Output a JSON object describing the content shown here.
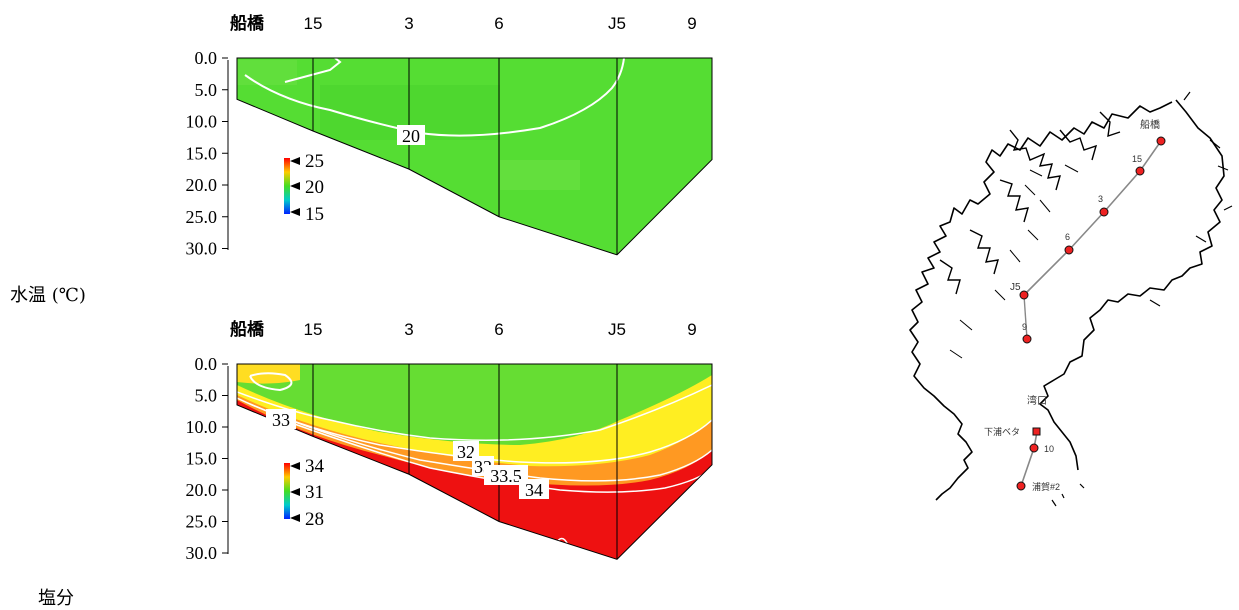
{
  "station_labels": [
    "船橋",
    "15",
    "3",
    "6",
    "J5",
    "9"
  ],
  "depth_ticks": [
    "0.0",
    "5.0",
    "10.0",
    "15.0",
    "20.0",
    "25.0",
    "30.0"
  ],
  "temperature": {
    "section_label": "水温 (℃)",
    "scale_labels": [
      "25",
      "20",
      "15"
    ],
    "contour_labels": [
      "20"
    ]
  },
  "salinity": {
    "section_label": "塩分",
    "scale_labels": [
      "34",
      "31",
      "28"
    ],
    "contour_labels": [
      "33",
      "32",
      "33",
      "33.5",
      "34"
    ]
  },
  "map": {
    "labels": [
      "船橋",
      "15",
      "3",
      "6",
      "J5",
      "9",
      "湾口",
      "下浦ベタ",
      "10",
      "浦賀#2"
    ]
  },
  "colors": {
    "green": "#55dd33",
    "yellow": "#ffee22",
    "orange": "#ff9922",
    "red": "#ee1111",
    "contour": "#ffffff"
  },
  "chart_data": [
    {
      "type": "heatmap",
      "title": "",
      "section_label": "水温 (℃)",
      "x_categories": [
        "船橋",
        "15",
        "3",
        "6",
        "J5",
        "9"
      ],
      "y_ticks": [
        0.0,
        5.0,
        10.0,
        15.0,
        20.0,
        25.0,
        30.0
      ],
      "ylim": [
        30.0,
        0.0
      ],
      "bottom_depth": [
        6.5,
        11.5,
        17.5,
        25.0,
        31.0,
        16.0
      ],
      "colorbar": {
        "min": 15,
        "mid": 20,
        "max": 25,
        "ticks": [
          25,
          20,
          15
        ]
      },
      "contours": [
        {
          "value": 20,
          "label": "20"
        }
      ]
    },
    {
      "type": "heatmap",
      "title": "",
      "section_label": "塩分",
      "x_categories": [
        "船橋",
        "15",
        "3",
        "6",
        "J5",
        "9"
      ],
      "y_ticks": [
        0.0,
        5.0,
        10.0,
        15.0,
        20.0,
        25.0,
        30.0
      ],
      "ylim": [
        30.0,
        0.0
      ],
      "bottom_depth": [
        6.5,
        11.5,
        17.5,
        25.0,
        31.0,
        16.0
      ],
      "colorbar": {
        "min": 28,
        "mid": 31,
        "max": 34,
        "ticks": [
          34,
          31,
          28
        ]
      },
      "contours": [
        {
          "value": 33,
          "label": "33"
        },
        {
          "value": 32,
          "label": "32"
        },
        {
          "value": 33,
          "label": "33"
        },
        {
          "value": 33.5,
          "label": "33.5"
        },
        {
          "value": 34,
          "label": "34"
        }
      ]
    }
  ]
}
